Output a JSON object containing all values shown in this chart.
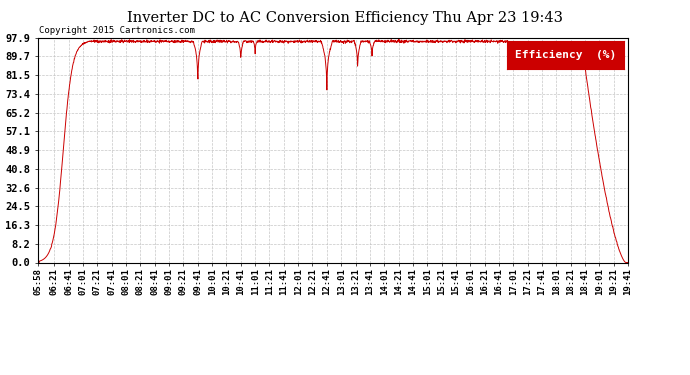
{
  "title": "Inverter DC to AC Conversion Efficiency Thu Apr 23 19:43",
  "copyright": "Copyright 2015 Cartronics.com",
  "legend_label": "Efficiency  (%)",
  "legend_bg": "#cc0000",
  "legend_text_color": "#ffffff",
  "line_color": "#cc0000",
  "background_color": "#ffffff",
  "grid_color": "#c0c0c0",
  "yticks": [
    0.0,
    8.2,
    16.3,
    24.5,
    32.6,
    40.8,
    48.9,
    57.1,
    65.2,
    73.4,
    81.5,
    89.7,
    97.9
  ],
  "ylim": [
    0.0,
    97.9
  ],
  "x_tick_labels": [
    "05:58",
    "06:21",
    "06:41",
    "07:01",
    "07:21",
    "07:41",
    "08:01",
    "08:21",
    "08:41",
    "09:01",
    "09:21",
    "09:41",
    "10:01",
    "10:21",
    "10:41",
    "11:01",
    "11:21",
    "11:41",
    "12:01",
    "12:21",
    "12:41",
    "13:01",
    "13:21",
    "13:41",
    "14:01",
    "14:21",
    "14:41",
    "15:01",
    "15:21",
    "15:41",
    "16:01",
    "16:21",
    "16:41",
    "17:01",
    "17:21",
    "17:41",
    "18:01",
    "18:21",
    "18:41",
    "19:01",
    "19:21",
    "19:41"
  ]
}
